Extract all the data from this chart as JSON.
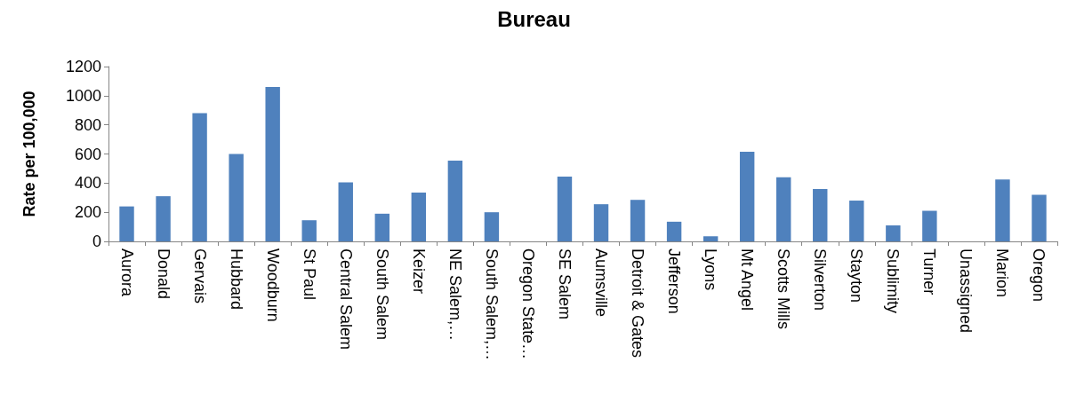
{
  "chart_data": {
    "type": "bar",
    "title": "Bureau",
    "ylabel": "Rate per 100,000",
    "categories": [
      "Aurora",
      "Donald",
      "Gervais",
      "Hubbard",
      "Woodburn",
      "St Paul",
      "Central Salem",
      "South Salem",
      "Keizer",
      "NE Salem,…",
      "South Salem,…",
      "Oregon State…",
      "SE Salem",
      "Aumsville",
      "Detroit & Gates",
      "Jefferson",
      "Lyons",
      "Mt Angel",
      "Scotts Mills",
      "Silverton",
      "Stayton",
      "Sublimity",
      "Turner",
      "Unassigned",
      "Marion",
      "Oregon"
    ],
    "values": [
      240,
      310,
      880,
      600,
      1060,
      145,
      405,
      190,
      335,
      555,
      200,
      0,
      445,
      255,
      285,
      135,
      35,
      615,
      440,
      360,
      280,
      110,
      210,
      0,
      425,
      320
    ],
    "color": "#4f81bd",
    "ylim": [
      0,
      1200
    ],
    "yticks": [
      0,
      200,
      400,
      600,
      800,
      1000,
      1200
    ],
    "grid": false
  }
}
